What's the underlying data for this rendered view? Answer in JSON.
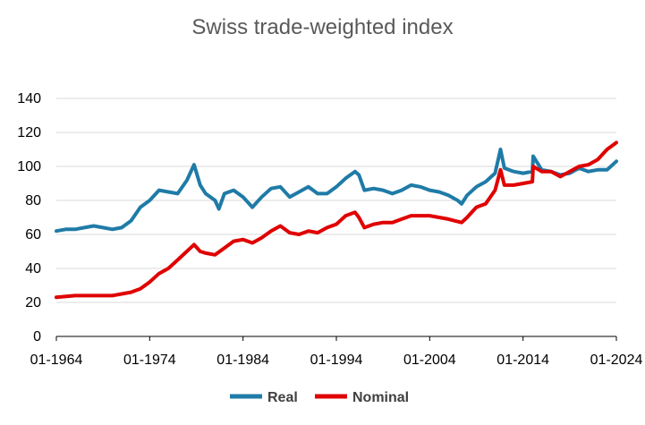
{
  "chart_data": {
    "type": "line",
    "title": "Swiss trade-weighted index",
    "xlabel": "",
    "ylabel": "",
    "ylim": [
      0,
      140
    ],
    "yticks": [
      0,
      20,
      40,
      60,
      80,
      100,
      120,
      140
    ],
    "xlim": [
      "01-1964",
      "01-2024"
    ],
    "xtick_labels": [
      "01-1964",
      "01-1974",
      "01-1984",
      "01-1994",
      "01-2004",
      "01-2014",
      "01-2024"
    ],
    "grid": "horizontal",
    "legend_position": "bottom",
    "series": [
      {
        "name": "Real",
        "color": "#1F7BA7",
        "points": [
          [
            "01-1964",
            62
          ],
          [
            "01-1965",
            63
          ],
          [
            "01-1966",
            63
          ],
          [
            "01-1967",
            64
          ],
          [
            "01-1968",
            65
          ],
          [
            "01-1969",
            64
          ],
          [
            "01-1970",
            63
          ],
          [
            "01-1971",
            64
          ],
          [
            "01-1972",
            68
          ],
          [
            "01-1973",
            76
          ],
          [
            "01-1974",
            80
          ],
          [
            "01-1975",
            86
          ],
          [
            "01-1976",
            85
          ],
          [
            "01-1977",
            84
          ],
          [
            "01-1978",
            92
          ],
          [
            "10-1978",
            101
          ],
          [
            "06-1979",
            89
          ],
          [
            "01-1980",
            84
          ],
          [
            "01-1981",
            80
          ],
          [
            "06-1981",
            75
          ],
          [
            "01-1982",
            84
          ],
          [
            "01-1983",
            86
          ],
          [
            "01-1984",
            82
          ],
          [
            "01-1985",
            76
          ],
          [
            "01-1986",
            82
          ],
          [
            "01-1987",
            87
          ],
          [
            "01-1988",
            88
          ],
          [
            "01-1989",
            82
          ],
          [
            "01-1990",
            85
          ],
          [
            "01-1991",
            88
          ],
          [
            "01-1992",
            84
          ],
          [
            "01-1993",
            84
          ],
          [
            "01-1994",
            88
          ],
          [
            "01-1995",
            93
          ],
          [
            "01-1996",
            97
          ],
          [
            "06-1996",
            95
          ],
          [
            "01-1997",
            86
          ],
          [
            "01-1998",
            87
          ],
          [
            "01-1999",
            86
          ],
          [
            "01-2000",
            84
          ],
          [
            "01-2001",
            86
          ],
          [
            "01-2002",
            89
          ],
          [
            "01-2003",
            88
          ],
          [
            "01-2004",
            86
          ],
          [
            "01-2005",
            85
          ],
          [
            "01-2006",
            83
          ],
          [
            "01-2007",
            80
          ],
          [
            "06-2007",
            78
          ],
          [
            "01-2008",
            83
          ],
          [
            "01-2009",
            88
          ],
          [
            "01-2010",
            91
          ],
          [
            "01-2011",
            96
          ],
          [
            "08-2011",
            110
          ],
          [
            "01-2012",
            99
          ],
          [
            "01-2013",
            97
          ],
          [
            "01-2014",
            96
          ],
          [
            "01-2015",
            97
          ],
          [
            "02-2015",
            106
          ],
          [
            "01-2016",
            98
          ],
          [
            "01-2017",
            97
          ],
          [
            "01-2018",
            95
          ],
          [
            "01-2019",
            96
          ],
          [
            "01-2020",
            99
          ],
          [
            "01-2021",
            97
          ],
          [
            "01-2022",
            98
          ],
          [
            "01-2023",
            98
          ],
          [
            "01-2024",
            103
          ]
        ]
      },
      {
        "name": "Nominal",
        "color": "#E00000",
        "points": [
          [
            "01-1964",
            23
          ],
          [
            "01-1966",
            24
          ],
          [
            "01-1968",
            24
          ],
          [
            "01-1970",
            24
          ],
          [
            "01-1971",
            25
          ],
          [
            "01-1972",
            26
          ],
          [
            "01-1973",
            28
          ],
          [
            "01-1974",
            32
          ],
          [
            "01-1975",
            37
          ],
          [
            "01-1976",
            40
          ],
          [
            "01-1977",
            45
          ],
          [
            "10-1978",
            54
          ],
          [
            "06-1979",
            50
          ],
          [
            "01-1980",
            49
          ],
          [
            "01-1981",
            48
          ],
          [
            "01-1982",
            52
          ],
          [
            "01-1983",
            56
          ],
          [
            "01-1984",
            57
          ],
          [
            "01-1985",
            55
          ],
          [
            "01-1986",
            58
          ],
          [
            "01-1987",
            62
          ],
          [
            "01-1988",
            65
          ],
          [
            "01-1989",
            61
          ],
          [
            "01-1990",
            60
          ],
          [
            "01-1991",
            62
          ],
          [
            "01-1992",
            61
          ],
          [
            "01-1993",
            64
          ],
          [
            "01-1994",
            66
          ],
          [
            "01-1995",
            71
          ],
          [
            "01-1996",
            73
          ],
          [
            "06-1996",
            70
          ],
          [
            "01-1997",
            64
          ],
          [
            "01-1998",
            66
          ],
          [
            "01-1999",
            67
          ],
          [
            "01-2000",
            67
          ],
          [
            "01-2001",
            69
          ],
          [
            "01-2002",
            71
          ],
          [
            "01-2003",
            71
          ],
          [
            "01-2004",
            71
          ],
          [
            "01-2005",
            70
          ],
          [
            "01-2006",
            69
          ],
          [
            "06-2007",
            67
          ],
          [
            "01-2008",
            70
          ],
          [
            "01-2009",
            76
          ],
          [
            "01-2010",
            78
          ],
          [
            "01-2011",
            86
          ],
          [
            "08-2011",
            98
          ],
          [
            "01-2012",
            89
          ],
          [
            "01-2013",
            89
          ],
          [
            "01-2014",
            90
          ],
          [
            "01-2015",
            91
          ],
          [
            "02-2015",
            100
          ],
          [
            "01-2016",
            97
          ],
          [
            "01-2017",
            97
          ],
          [
            "01-2018",
            94
          ],
          [
            "01-2019",
            97
          ],
          [
            "01-2020",
            100
          ],
          [
            "01-2021",
            101
          ],
          [
            "01-2022",
            104
          ],
          [
            "01-2023",
            110
          ],
          [
            "01-2024",
            114
          ]
        ]
      }
    ]
  }
}
